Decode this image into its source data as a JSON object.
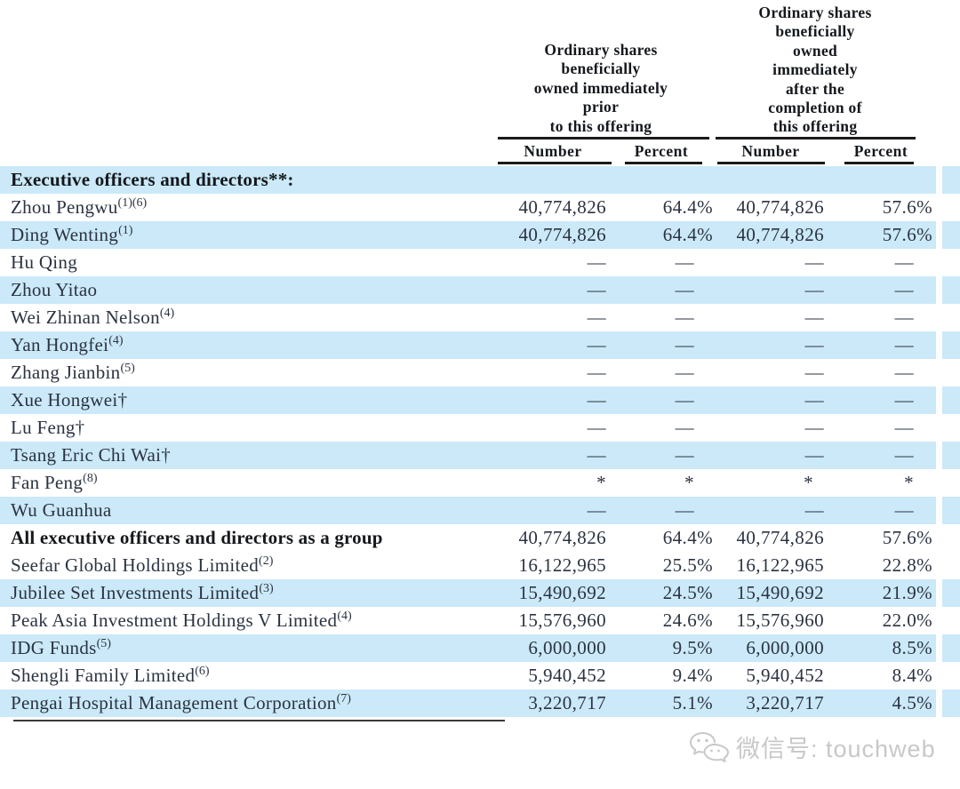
{
  "header": {
    "prior": {
      "lines": [
        "Ordinary shares",
        "beneficially",
        "owned immediately",
        "prior",
        "to this offering"
      ],
      "number_label": "Number",
      "percent_label": "Percent"
    },
    "after": {
      "lines": [
        "Ordinary shares",
        "beneficially",
        "owned",
        "immediately",
        "after the",
        "completion of",
        "this offering"
      ],
      "number_label": "Number",
      "percent_label": "Percent"
    }
  },
  "table": {
    "rows": [
      {
        "name": "Executive officers and directors**:",
        "sup": "",
        "bold": true,
        "shaded": true,
        "cells": [
          "",
          "",
          "",
          ""
        ]
      },
      {
        "name": "Zhou Pengwu",
        "sup": "(1)(6)",
        "bold": false,
        "shaded": false,
        "cells": [
          "40,774,826",
          "64.4%",
          "40,774,826",
          "57.6%"
        ]
      },
      {
        "name": "Ding Wenting",
        "sup": "(1)",
        "bold": false,
        "shaded": true,
        "cells": [
          "40,774,826",
          "64.4%",
          "40,774,826",
          "57.6%"
        ]
      },
      {
        "name": "Hu Qing",
        "sup": "",
        "bold": false,
        "shaded": false,
        "cells": [
          "—",
          "—",
          "—",
          "—"
        ]
      },
      {
        "name": "Zhou Yitao",
        "sup": "",
        "bold": false,
        "shaded": true,
        "cells": [
          "—",
          "—",
          "—",
          "—"
        ]
      },
      {
        "name": "Wei Zhinan Nelson",
        "sup": "(4)",
        "bold": false,
        "shaded": false,
        "cells": [
          "—",
          "—",
          "—",
          "—"
        ]
      },
      {
        "name": "Yan Hongfei",
        "sup": "(4)",
        "bold": false,
        "shaded": true,
        "cells": [
          "—",
          "—",
          "—",
          "—"
        ]
      },
      {
        "name": "Zhang Jianbin",
        "sup": "(5)",
        "bold": false,
        "shaded": false,
        "cells": [
          "—",
          "—",
          "—",
          "—"
        ]
      },
      {
        "name": "Xue Hongwei†",
        "sup": "",
        "bold": false,
        "shaded": true,
        "cells": [
          "—",
          "—",
          "—",
          "—"
        ]
      },
      {
        "name": "Lu Feng†",
        "sup": "",
        "bold": false,
        "shaded": false,
        "cells": [
          "—",
          "—",
          "—",
          "—"
        ]
      },
      {
        "name": "Tsang Eric Chi Wai†",
        "sup": "",
        "bold": false,
        "shaded": true,
        "cells": [
          "—",
          "—",
          "—",
          "—"
        ]
      },
      {
        "name": "Fan Peng",
        "sup": "(8)",
        "bold": false,
        "shaded": false,
        "cells": [
          "*",
          "*",
          "*",
          "*"
        ]
      },
      {
        "name": "Wu Guanhua",
        "sup": "",
        "bold": false,
        "shaded": true,
        "cells": [
          "—",
          "—",
          "—",
          "—"
        ]
      },
      {
        "name": "All executive officers and directors as a group",
        "sup": "",
        "bold": true,
        "shaded": false,
        "cells": [
          "40,774,826",
          "64.4%",
          "40,774,826",
          "57.6%"
        ]
      },
      {
        "name": "Seefar Global Holdings Limited",
        "sup": "(2)",
        "bold": false,
        "shaded": false,
        "cells": [
          "16,122,965",
          "25.5%",
          "16,122,965",
          "22.8%"
        ]
      },
      {
        "name": "Jubilee Set Investments Limited",
        "sup": "(3)",
        "bold": false,
        "shaded": true,
        "cells": [
          "15,490,692",
          "24.5%",
          "15,490,692",
          "21.9%"
        ]
      },
      {
        "name": "Peak Asia Investment Holdings V Limited",
        "sup": "(4)",
        "bold": false,
        "shaded": false,
        "cells": [
          "15,576,960",
          "24.6%",
          "15,576,960",
          "22.0%"
        ]
      },
      {
        "name": "IDG Funds",
        "sup": "(5)",
        "bold": false,
        "shaded": true,
        "cells": [
          "6,000,000",
          "9.5%",
          "6,000,000",
          "8.5%"
        ]
      },
      {
        "name": "Shengli Family Limited",
        "sup": "(6)",
        "bold": false,
        "shaded": false,
        "cells": [
          "5,940,452",
          "9.4%",
          "5,940,452",
          "8.4%"
        ]
      },
      {
        "name": "Pengai Hospital Management Corporation",
        "sup": "(7)",
        "bold": false,
        "shaded": true,
        "cells": [
          "3,220,717",
          "5.1%",
          "3,220,717",
          "4.5%"
        ]
      }
    ]
  },
  "watermark": {
    "icon": "wechat-icon",
    "text": "微信号: touchweb"
  },
  "colors": {
    "stripe": "#cbe9f8",
    "text": "#2b3342",
    "bold_text": "#14181d",
    "watermark": "#c8c8c8"
  }
}
